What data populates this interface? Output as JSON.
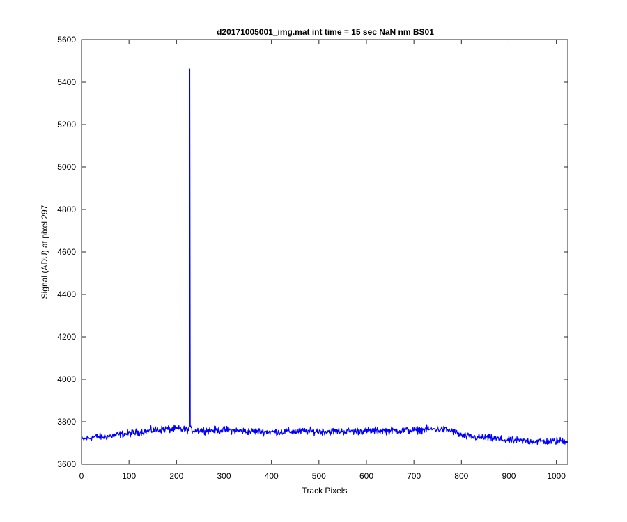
{
  "chart_data": {
    "type": "line",
    "title": "d20171005001_img.mat int time = 15 sec  NaN nm BS01",
    "xlabel": "Track Pixels",
    "ylabel": "Signal (ADU) at pixel 297",
    "xlim": [
      0,
      1024
    ],
    "ylim": [
      3600,
      5600
    ],
    "xticks": [
      0,
      100,
      200,
      300,
      400,
      500,
      600,
      700,
      800,
      900,
      1000
    ],
    "yticks": [
      3600,
      3800,
      4000,
      4200,
      4400,
      4600,
      4800,
      5000,
      5200,
      5400,
      5600
    ],
    "grid": false,
    "line_color": "#0000ff",
    "series": [
      {
        "baseline": [
          [
            0,
            3715
          ],
          [
            25,
            3728
          ],
          [
            50,
            3730
          ],
          [
            75,
            3738
          ],
          [
            100,
            3745
          ],
          [
            125,
            3752
          ],
          [
            150,
            3760
          ],
          [
            175,
            3765
          ],
          [
            200,
            3765
          ],
          [
            225,
            3762
          ],
          [
            250,
            3760
          ],
          [
            275,
            3760
          ],
          [
            300,
            3762
          ],
          [
            325,
            3758
          ],
          [
            350,
            3755
          ],
          [
            400,
            3752
          ],
          [
            450,
            3755
          ],
          [
            500,
            3755
          ],
          [
            550,
            3755
          ],
          [
            600,
            3757
          ],
          [
            650,
            3758
          ],
          [
            700,
            3760
          ],
          [
            730,
            3765
          ],
          [
            760,
            3765
          ],
          [
            780,
            3758
          ],
          [
            800,
            3735
          ],
          [
            820,
            3728
          ],
          [
            850,
            3725
          ],
          [
            880,
            3718
          ],
          [
            900,
            3712
          ],
          [
            930,
            3710
          ],
          [
            960,
            3708
          ],
          [
            990,
            3708
          ],
          [
            1024,
            3712
          ]
        ],
        "noise_amplitude": 14,
        "spike": {
          "x": 228,
          "y": 5462
        }
      }
    ]
  }
}
